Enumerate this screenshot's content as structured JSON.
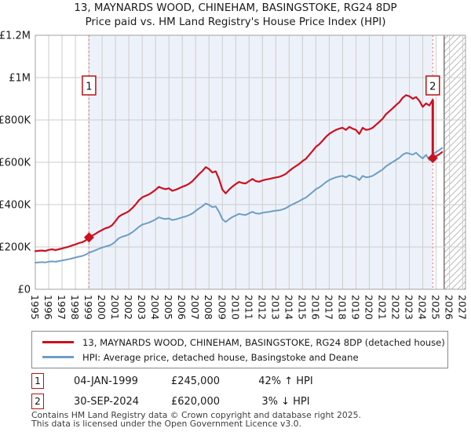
{
  "title": "13, MAYNARDS WOOD, CHINEHAM, BASINGSTOKE, RG24 8DP",
  "subtitle": "Price paid vs. HM Land Registry's House Price Index (HPI)",
  "legend": {
    "series1": "13, MAYNARDS WOOD, CHINEHAM, BASINGSTOKE, RG24 8DP (detached house)",
    "series2": "HPI: Average price, detached house, Basingstoke and Deane"
  },
  "sales": [
    {
      "marker": "1",
      "date": "04-JAN-1999",
      "price": "£245,000",
      "hpi": "42% ↑ HPI"
    },
    {
      "marker": "2",
      "date": "30-SEP-2024",
      "price": "£620,000",
      "hpi": "3% ↓ HPI"
    }
  ],
  "footer": {
    "line1": "Contains HM Land Registry data © Crown copyright and database right 2025.",
    "line2": "This data is licensed under the Open Government Licence v3.0."
  },
  "colors": {
    "price_line": "#cc1020",
    "hpi_line": "#6d9dc5",
    "highlight_bg": "#edf2fa",
    "marker_red": "#bb1111",
    "dashed_line": "#ff6666",
    "grid": "#cccccc",
    "hatch": "#bbbbbb",
    "border": "#a0a0a0",
    "tick_text": "#191919"
  },
  "chart_data": {
    "type": "line",
    "title": "Price paid vs. HM Land Registry's House Price Index (HPI)",
    "xlabel": "",
    "ylabel": "",
    "unit": "GBP thousands",
    "xlim": [
      1995,
      2027.2
    ],
    "ylim": [
      0,
      1200
    ],
    "grid": true,
    "legend_position": "bottom",
    "x_ticks": [
      "1995",
      "1996",
      "1997",
      "1998",
      "1999",
      "2000",
      "2001",
      "2002",
      "2003",
      "2004",
      "2005",
      "2006",
      "2007",
      "2008",
      "2009",
      "2010",
      "2011",
      "2012",
      "2013",
      "2014",
      "2015",
      "2016",
      "2017",
      "2018",
      "2019",
      "2020",
      "2021",
      "2022",
      "2023",
      "2024",
      "2025",
      "2026",
      "2027"
    ],
    "y_ticks": [
      {
        "label": "£0",
        "value": 0
      },
      {
        "label": "£200K",
        "value": 200
      },
      {
        "label": "£400K",
        "value": 400
      },
      {
        "label": "£600K",
        "value": 600
      },
      {
        "label": "£800K",
        "value": 800
      },
      {
        "label": "£1M",
        "value": 1000
      },
      {
        "label": "£1.2M",
        "value": 1200
      }
    ],
    "shaded_span": [
      1999.02,
      2024.75
    ],
    "future_hatch_start": 2025.6,
    "sale_points": [
      {
        "x": 1999.02,
        "y": 245,
        "label": "1"
      },
      {
        "x": 2024.75,
        "y": 620,
        "label": "2"
      }
    ],
    "drop_segment": {
      "x": 2024.75,
      "from": 895,
      "to": 620
    },
    "series": [
      {
        "name": "13, MAYNARDS WOOD, CHINEHAM, BASINGSTOKE, RG24 8DP (detached house)",
        "color_key": "price_line",
        "width": 2.2,
        "points": [
          [
            1995.0,
            180
          ],
          [
            1995.25,
            182
          ],
          [
            1995.5,
            183
          ],
          [
            1995.75,
            181
          ],
          [
            1996.0,
            186
          ],
          [
            1996.25,
            189
          ],
          [
            1996.5,
            185
          ],
          [
            1996.75,
            189
          ],
          [
            1997.0,
            193
          ],
          [
            1997.25,
            197
          ],
          [
            1997.5,
            201
          ],
          [
            1997.75,
            207
          ],
          [
            1998.0,
            212
          ],
          [
            1998.25,
            218
          ],
          [
            1998.5,
            222
          ],
          [
            1998.75,
            230
          ],
          [
            1999.02,
            245
          ],
          [
            1999.25,
            253
          ],
          [
            1999.5,
            262
          ],
          [
            1999.75,
            272
          ],
          [
            2000.0,
            280
          ],
          [
            2000.25,
            288
          ],
          [
            2000.5,
            293
          ],
          [
            2000.75,
            303
          ],
          [
            2001.0,
            322
          ],
          [
            2001.25,
            343
          ],
          [
            2001.5,
            353
          ],
          [
            2001.75,
            360
          ],
          [
            2002.0,
            369
          ],
          [
            2002.25,
            383
          ],
          [
            2002.5,
            400
          ],
          [
            2002.75,
            420
          ],
          [
            2003.0,
            434
          ],
          [
            2003.25,
            441
          ],
          [
            2003.5,
            448
          ],
          [
            2003.75,
            458
          ],
          [
            2004.0,
            470
          ],
          [
            2004.25,
            484
          ],
          [
            2004.5,
            477
          ],
          [
            2004.75,
            473
          ],
          [
            2005.0,
            477
          ],
          [
            2005.25,
            465
          ],
          [
            2005.5,
            470
          ],
          [
            2005.75,
            477
          ],
          [
            2006.0,
            484
          ],
          [
            2006.25,
            490
          ],
          [
            2006.5,
            498
          ],
          [
            2006.75,
            510
          ],
          [
            2007.0,
            527
          ],
          [
            2007.25,
            544
          ],
          [
            2007.5,
            558
          ],
          [
            2007.75,
            577
          ],
          [
            2008.0,
            568
          ],
          [
            2008.25,
            552
          ],
          [
            2008.5,
            557
          ],
          [
            2008.75,
            521
          ],
          [
            2009.0,
            471
          ],
          [
            2009.25,
            453
          ],
          [
            2009.5,
            471
          ],
          [
            2009.75,
            485
          ],
          [
            2010.0,
            497
          ],
          [
            2010.25,
            507
          ],
          [
            2010.5,
            502
          ],
          [
            2010.75,
            500
          ],
          [
            2011.0,
            511
          ],
          [
            2011.25,
            521
          ],
          [
            2011.5,
            511
          ],
          [
            2011.75,
            508
          ],
          [
            2012.0,
            514
          ],
          [
            2012.25,
            518
          ],
          [
            2012.5,
            521
          ],
          [
            2012.75,
            525
          ],
          [
            2013.0,
            528
          ],
          [
            2013.25,
            531
          ],
          [
            2013.5,
            537
          ],
          [
            2013.75,
            545
          ],
          [
            2014.0,
            559
          ],
          [
            2014.25,
            571
          ],
          [
            2014.5,
            582
          ],
          [
            2014.75,
            592
          ],
          [
            2015.0,
            606
          ],
          [
            2015.25,
            616
          ],
          [
            2015.5,
            635
          ],
          [
            2015.75,
            653
          ],
          [
            2016.0,
            673
          ],
          [
            2016.25,
            685
          ],
          [
            2016.5,
            702
          ],
          [
            2016.75,
            720
          ],
          [
            2017.0,
            734
          ],
          [
            2017.25,
            744
          ],
          [
            2017.5,
            753
          ],
          [
            2017.75,
            759
          ],
          [
            2018.0,
            763
          ],
          [
            2018.25,
            753
          ],
          [
            2018.5,
            767
          ],
          [
            2018.75,
            759
          ],
          [
            2019.0,
            753
          ],
          [
            2019.25,
            734
          ],
          [
            2019.5,
            763
          ],
          [
            2019.75,
            753
          ],
          [
            2020.0,
            756
          ],
          [
            2020.25,
            763
          ],
          [
            2020.5,
            777
          ],
          [
            2020.75,
            791
          ],
          [
            2021.0,
            806
          ],
          [
            2021.25,
            827
          ],
          [
            2021.5,
            841
          ],
          [
            2021.75,
            855
          ],
          [
            2022.0,
            870
          ],
          [
            2022.25,
            884
          ],
          [
            2022.5,
            905
          ],
          [
            2022.75,
            917
          ],
          [
            2023.0,
            912
          ],
          [
            2023.25,
            900
          ],
          [
            2023.5,
            908
          ],
          [
            2023.75,
            890
          ],
          [
            2024.0,
            862
          ],
          [
            2024.25,
            878
          ],
          [
            2024.5,
            868
          ],
          [
            2024.75,
            895
          ],
          [
            2024.75,
            620
          ],
          [
            2025.0,
            629
          ],
          [
            2025.25,
            638
          ],
          [
            2025.45,
            648
          ]
        ]
      },
      {
        "name": "HPI: Average price, detached house, Basingstoke and Deane",
        "color_key": "hpi_line",
        "width": 2,
        "points": [
          [
            1995.0,
            126
          ],
          [
            1995.25,
            127
          ],
          [
            1995.5,
            128
          ],
          [
            1995.75,
            127
          ],
          [
            1996.0,
            130
          ],
          [
            1996.25,
            132
          ],
          [
            1996.5,
            130
          ],
          [
            1996.75,
            133
          ],
          [
            1997.0,
            136
          ],
          [
            1997.25,
            139
          ],
          [
            1997.5,
            142
          ],
          [
            1997.75,
            146
          ],
          [
            1998.0,
            150
          ],
          [
            1998.25,
            154
          ],
          [
            1998.5,
            157
          ],
          [
            1998.75,
            163
          ],
          [
            1999.0,
            172
          ],
          [
            1999.25,
            178
          ],
          [
            1999.5,
            184
          ],
          [
            1999.75,
            191
          ],
          [
            2000.0,
            197
          ],
          [
            2000.25,
            202
          ],
          [
            2000.5,
            206
          ],
          [
            2000.75,
            213
          ],
          [
            2001.0,
            226
          ],
          [
            2001.25,
            241
          ],
          [
            2001.5,
            248
          ],
          [
            2001.75,
            253
          ],
          [
            2002.0,
            259
          ],
          [
            2002.25,
            269
          ],
          [
            2002.5,
            281
          ],
          [
            2002.75,
            295
          ],
          [
            2003.0,
            305
          ],
          [
            2003.25,
            310
          ],
          [
            2003.5,
            315
          ],
          [
            2003.75,
            322
          ],
          [
            2004.0,
            330
          ],
          [
            2004.25,
            340
          ],
          [
            2004.5,
            335
          ],
          [
            2004.75,
            332
          ],
          [
            2005.0,
            335
          ],
          [
            2005.25,
            327
          ],
          [
            2005.5,
            330
          ],
          [
            2005.75,
            335
          ],
          [
            2006.0,
            340
          ],
          [
            2006.25,
            344
          ],
          [
            2006.5,
            350
          ],
          [
            2006.75,
            358
          ],
          [
            2007.0,
            370
          ],
          [
            2007.25,
            382
          ],
          [
            2007.5,
            392
          ],
          [
            2007.75,
            405
          ],
          [
            2008.0,
            399
          ],
          [
            2008.25,
            388
          ],
          [
            2008.5,
            391
          ],
          [
            2008.75,
            366
          ],
          [
            2009.0,
            331
          ],
          [
            2009.25,
            318
          ],
          [
            2009.5,
            331
          ],
          [
            2009.75,
            341
          ],
          [
            2010.0,
            349
          ],
          [
            2010.25,
            356
          ],
          [
            2010.5,
            353
          ],
          [
            2010.75,
            351
          ],
          [
            2011.0,
            359
          ],
          [
            2011.25,
            366
          ],
          [
            2011.5,
            359
          ],
          [
            2011.75,
            357
          ],
          [
            2012.0,
            361
          ],
          [
            2012.25,
            364
          ],
          [
            2012.5,
            366
          ],
          [
            2012.75,
            369
          ],
          [
            2013.0,
            371
          ],
          [
            2013.25,
            373
          ],
          [
            2013.5,
            377
          ],
          [
            2013.75,
            383
          ],
          [
            2014.0,
            393
          ],
          [
            2014.25,
            401
          ],
          [
            2014.5,
            409
          ],
          [
            2014.75,
            416
          ],
          [
            2015.0,
            426
          ],
          [
            2015.25,
            433
          ],
          [
            2015.5,
            446
          ],
          [
            2015.75,
            459
          ],
          [
            2016.0,
            473
          ],
          [
            2016.25,
            481
          ],
          [
            2016.5,
            493
          ],
          [
            2016.75,
            506
          ],
          [
            2017.0,
            516
          ],
          [
            2017.25,
            523
          ],
          [
            2017.5,
            529
          ],
          [
            2017.75,
            533
          ],
          [
            2018.0,
            536
          ],
          [
            2018.25,
            529
          ],
          [
            2018.5,
            539
          ],
          [
            2018.75,
            533
          ],
          [
            2019.0,
            529
          ],
          [
            2019.25,
            516
          ],
          [
            2019.5,
            536
          ],
          [
            2019.75,
            529
          ],
          [
            2020.0,
            531
          ],
          [
            2020.25,
            536
          ],
          [
            2020.5,
            546
          ],
          [
            2020.75,
            556
          ],
          [
            2021.0,
            566
          ],
          [
            2021.25,
            581
          ],
          [
            2021.5,
            591
          ],
          [
            2021.75,
            601
          ],
          [
            2022.0,
            611
          ],
          [
            2022.25,
            621
          ],
          [
            2022.5,
            636
          ],
          [
            2022.75,
            644
          ],
          [
            2023.0,
            641
          ],
          [
            2023.25,
            636
          ],
          [
            2023.5,
            645
          ],
          [
            2023.75,
            630
          ],
          [
            2024.0,
            618
          ],
          [
            2024.25,
            635
          ],
          [
            2024.5,
            610
          ],
          [
            2024.75,
            639
          ],
          [
            2025.0,
            648
          ],
          [
            2025.25,
            658
          ],
          [
            2025.45,
            668
          ]
        ]
      }
    ]
  }
}
